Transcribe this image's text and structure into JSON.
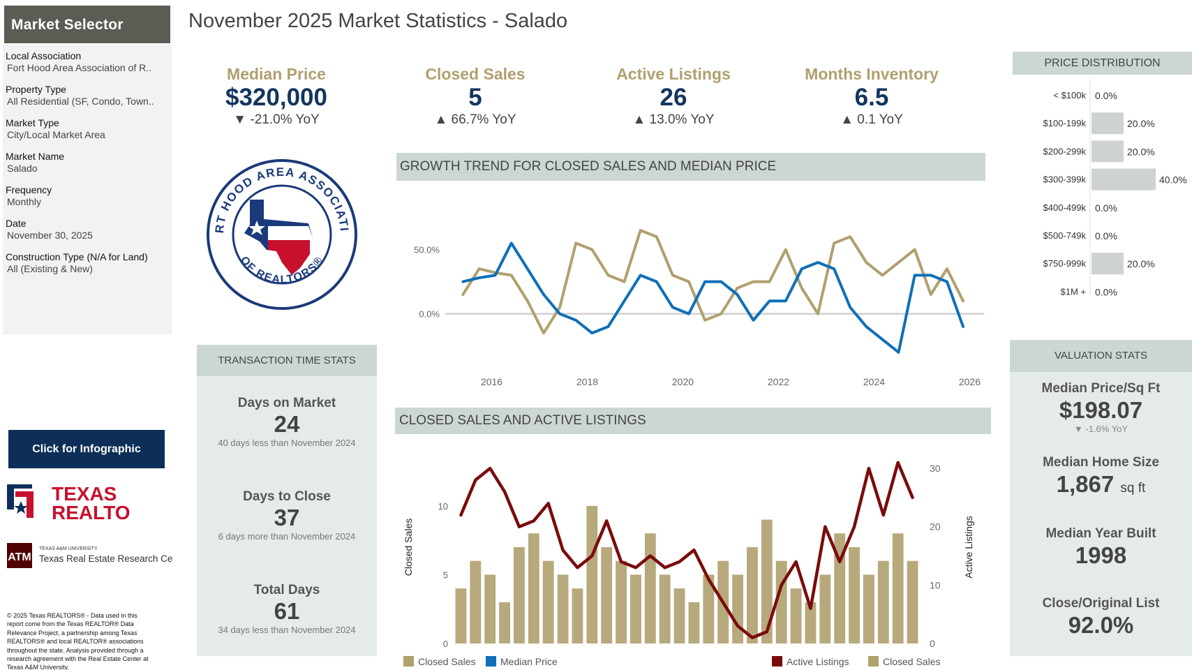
{
  "sidebar": {
    "title": "Market Selector",
    "fields": [
      {
        "label": "Local Association",
        "value": "Fort Hood Area Association of R.."
      },
      {
        "label": "Property Type",
        "value": "All Residential (SF, Condo, Town.."
      },
      {
        "label": "Market Type",
        "value": "City/Local Market Area"
      },
      {
        "label": "Market Name",
        "value": "Salado"
      },
      {
        "label": "Frequency",
        "value": "Monthly"
      },
      {
        "label": "Date",
        "value": "November 30, 2025"
      },
      {
        "label": "Construction Type (N/A for Land)",
        "value": "All (Existing & New)"
      }
    ],
    "infographic_button": "Click for Infographic",
    "copyright_lines": [
      "© 2025 Texas REALTORS® - Data used in this",
      "report come from the Texas REALTOR® Data",
      "Relevance Project, a partnership among Texas",
      "REALTORS® and local REALTOR® associations",
      "throughout the state. Analysis provided through a",
      "research agreement with the Real Estate Center at",
      "Texas A&M University."
    ]
  },
  "logos": {
    "texas_realtors_line1": "TEXAS",
    "texas_realtors_line2": "REALTORS",
    "tamu_small": "TEXAS A&M UNIVERSITY",
    "tamu_name": "Texas Real Estate Research Center",
    "fort_hood_ring_top": "FORT HOOD AREA ASSOCIATION",
    "fort_hood_ring_bottom": "OF REALTORS®"
  },
  "header": {
    "title": "November 2025 Market Statistics - Salado"
  },
  "kpis": [
    {
      "label": "Median Price",
      "value": "$320,000",
      "change": "▼ -21.0% YoY"
    },
    {
      "label": "Closed Sales",
      "value": "5",
      "change": "▲ 66.7% YoY"
    },
    {
      "label": "Active Listings",
      "value": "26",
      "change": "▲ 13.0% YoY"
    },
    {
      "label": "Months Inventory",
      "value": "6.5",
      "change": "▲ 0.1 YoY"
    }
  ],
  "transaction": {
    "title": "TRANSACTION TIME STATS",
    "stats": [
      {
        "label": "Days on Market",
        "value": "24",
        "note": "40 days less than November 2024"
      },
      {
        "label": "Days to Close",
        "value": "37",
        "note": "6 days more than November 2024"
      },
      {
        "label": "Total Days",
        "value": "61",
        "note": "34 days less than November 2024"
      }
    ]
  },
  "valuation": {
    "title": "VALUATION STATS",
    "stats": [
      {
        "label": "Median Price/Sq Ft",
        "value": "$198.07",
        "unit": "",
        "change": "▼ -1.6% YoY"
      },
      {
        "label": "Median Home Size",
        "value": "1,867",
        "unit": "sq ft",
        "change": ""
      },
      {
        "label": "Median Year Built",
        "value": "1998",
        "unit": "",
        "change": ""
      },
      {
        "label": "Close/Original List",
        "value": "92.0%",
        "unit": "",
        "change": ""
      }
    ]
  },
  "colors": {
    "gold": "#b0a06e",
    "blue": "#0f6fb8",
    "maroon": "#7a0c0c",
    "navy": "#13355e",
    "panel": "#ccd7d2",
    "bar": "#cfd2d3"
  },
  "chart_data": [
    {
      "type": "bar",
      "title": "PRICE DISTRIBUTION",
      "categories": [
        "< $100k",
        "$100-199k",
        "$200-299k",
        "$300-399k",
        "$400-499k",
        "$500-749k",
        "$750-999k",
        "$1M +"
      ],
      "values": [
        0.0,
        20.0,
        20.0,
        40.0,
        0.0,
        0.0,
        20.0,
        0.0
      ],
      "labels": [
        "0.0%",
        "20.0%",
        "20.0%",
        "40.0%",
        "0.0%",
        "0.0%",
        "20.0%",
        "0.0%"
      ],
      "orientation": "horizontal",
      "xlim": [
        0,
        40
      ]
    },
    {
      "type": "line",
      "title": "GROWTH TREND FOR CLOSED SALES AND MEDIAN PRICE",
      "x_start": 2015.0,
      "x_step": 0.25,
      "x_ticks": [
        2016,
        2018,
        2020,
        2022,
        2024,
        2026
      ],
      "y_ticks": [
        {
          "v": 0,
          "label": "0.0%"
        },
        {
          "v": 50,
          "label": "50.0%"
        }
      ],
      "ylim": [
        -35,
        90
      ],
      "legend": "bottom-left",
      "series": [
        {
          "name": "Closed Sales",
          "color": "#b0a06e",
          "values": [
            15,
            35,
            32,
            30,
            10,
            -15,
            5,
            55,
            50,
            30,
            25,
            65,
            60,
            30,
            25,
            -5,
            0,
            20,
            25,
            25,
            50,
            20,
            0,
            55,
            60,
            40,
            30,
            40,
            50,
            15,
            35,
            10
          ]
        },
        {
          "name": "Median Price",
          "color": "#0f6fb8",
          "values": [
            25,
            28,
            30,
            55,
            35,
            15,
            0,
            -5,
            -15,
            -10,
            10,
            30,
            25,
            5,
            0,
            25,
            25,
            15,
            -5,
            10,
            10,
            35,
            40,
            35,
            5,
            -10,
            -20,
            -30,
            30,
            30,
            25,
            -10
          ]
        }
      ]
    },
    {
      "type": "bar",
      "title": "CLOSED SALES AND ACTIVE LISTINGS",
      "x_start": 2015.0,
      "x_step": 0.25,
      "ylabel": "Closed Sales",
      "y2label": "Active Listings",
      "ylim": [
        0,
        14
      ],
      "y2lim": [
        0,
        33
      ],
      "y_ticks": [
        0,
        5,
        10
      ],
      "y2_ticks": [
        0,
        10,
        20,
        30
      ],
      "legend": "bottom-right",
      "series": [
        {
          "name": "Closed Sales",
          "axis": "left",
          "color": "#b0a06e",
          "values": [
            4,
            6,
            5,
            3,
            7,
            8,
            6,
            5,
            4,
            10,
            7,
            6,
            5,
            8,
            5,
            4,
            3,
            5,
            6,
            5,
            7,
            9,
            6,
            4,
            3,
            5,
            8,
            7,
            5,
            6,
            8,
            6
          ]
        },
        {
          "name": "Active Listings",
          "axis": "right",
          "color": "#7a0c0c",
          "values": [
            22,
            28,
            30,
            26,
            20,
            21,
            24,
            16,
            13,
            15,
            21,
            14,
            13,
            15,
            13,
            14,
            16,
            11,
            7,
            3,
            1,
            2,
            10,
            14,
            6,
            20,
            14,
            20,
            30,
            22,
            31,
            25
          ]
        }
      ]
    }
  ]
}
